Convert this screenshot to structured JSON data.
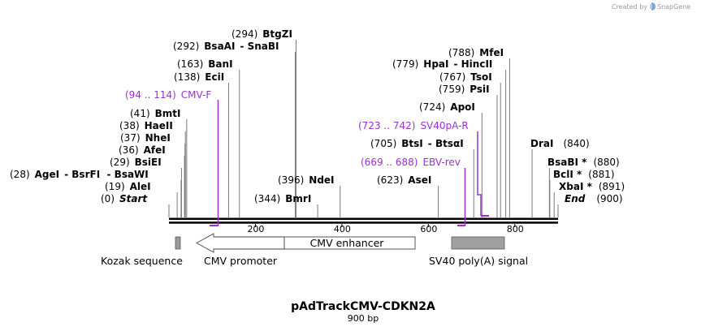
{
  "credit": {
    "created_by": "Created by",
    "brand": "SnapGene"
  },
  "plasmid": {
    "name": "pAdTrackCMV-CDKN2A",
    "length_label": "900 bp",
    "length_bp": 900
  },
  "ruler": {
    "ticks": [
      200,
      400,
      600,
      800
    ]
  },
  "sites": [
    {
      "pos": "(294)",
      "name": "BtgZI",
      "bp": 294
    },
    {
      "pos": "(292)",
      "name": "BsaAI",
      "suffix": "- SnaBI",
      "bp": 292
    },
    {
      "pos": "(163)",
      "name": "BanI",
      "bp": 163
    },
    {
      "pos": "(138)",
      "name": "EciI",
      "bp": 138
    },
    {
      "pos": "(41)",
      "name": "BmtI",
      "bp": 41
    },
    {
      "pos": "(38)",
      "name": "HaeII",
      "bp": 38
    },
    {
      "pos": "(37)",
      "name": "NheI",
      "bp": 37
    },
    {
      "pos": "(36)",
      "name": "AfeI",
      "bp": 36
    },
    {
      "pos": "(29)",
      "name": "BsiEI",
      "bp": 29
    },
    {
      "pos": "(28)",
      "name": "AgeI",
      "suffix": "- BsrFI  - BsaWI",
      "bp": 28
    },
    {
      "pos": "(19)",
      "name": "AleI",
      "bp": 19
    },
    {
      "pos": "(0)",
      "name": "Start",
      "bp": 0,
      "italic": true
    },
    {
      "pos": "(396)",
      "name": "NdeI",
      "bp": 396
    },
    {
      "pos": "(344)",
      "name": "BmrI",
      "bp": 344
    },
    {
      "pos": "(788)",
      "name": "MfeI",
      "bp": 788
    },
    {
      "pos": "(779)",
      "name": "HpaI",
      "suffix": "- HincII",
      "bp": 779
    },
    {
      "pos": "(767)",
      "name": "TsoI",
      "bp": 767
    },
    {
      "pos": "(759)",
      "name": "PsiI",
      "bp": 759
    },
    {
      "pos": "(724)",
      "name": "ApoI",
      "bp": 724
    },
    {
      "pos": "(705)",
      "name": "BtsI",
      "suffix": "- BtsαI",
      "bp": 705
    },
    {
      "pos": "(623)",
      "name": "AseI",
      "bp": 623
    },
    {
      "pos": "(840)",
      "name": "DraI",
      "bp": 840,
      "right": true
    },
    {
      "pos": "(880)",
      "name": "BsaBI *",
      "bp": 880,
      "right": true
    },
    {
      "pos": "(881)",
      "name": "BclI *",
      "bp": 881,
      "right": true
    },
    {
      "pos": "(891)",
      "name": "XbaI *",
      "bp": 891,
      "right": true
    },
    {
      "pos": "(900)",
      "name": "End",
      "bp": 900,
      "right": true,
      "italic": true
    }
  ],
  "primers": [
    {
      "range": "(94 .. 114)",
      "name": "CMV-F",
      "start": 94,
      "end": 114
    },
    {
      "range": "(723 .. 742)",
      "name": "SV40pA-R",
      "start": 723,
      "end": 742
    },
    {
      "range": "(669 .. 688)",
      "name": "EBV-rev",
      "start": 669,
      "end": 688
    }
  ],
  "features": [
    {
      "name": "Kozak sequence",
      "start": 10,
      "end": 20
    },
    {
      "name": "CMV promoter",
      "start": 45,
      "end": 271,
      "direction": "reverse"
    },
    {
      "name": "CMV enhancer",
      "start": 271,
      "end": 575
    },
    {
      "name": "SV40 poly(A) signal",
      "start": 653,
      "end": 777
    }
  ]
}
